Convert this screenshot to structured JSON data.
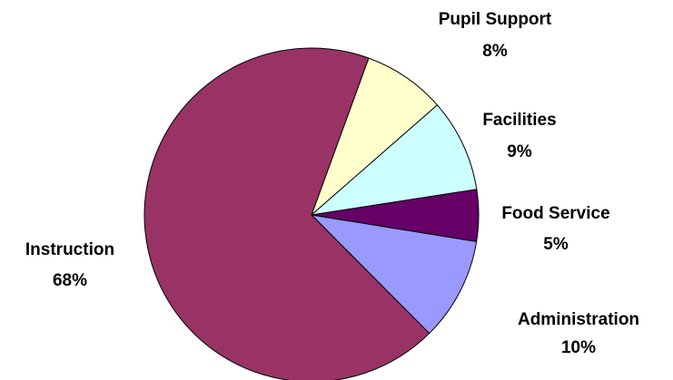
{
  "chart_data": {
    "type": "pie",
    "categories": [
      "Pupil Support",
      "Facilities",
      "Food Service",
      "Administration",
      "Instruction"
    ],
    "values": [
      8,
      9,
      5,
      10,
      68
    ],
    "value_labels": [
      "8%",
      "9%",
      "5%",
      "10%",
      "68%"
    ],
    "colors": [
      "#ffffcc",
      "#ccffff",
      "#660066",
      "#9999ff",
      "#993366"
    ]
  }
}
